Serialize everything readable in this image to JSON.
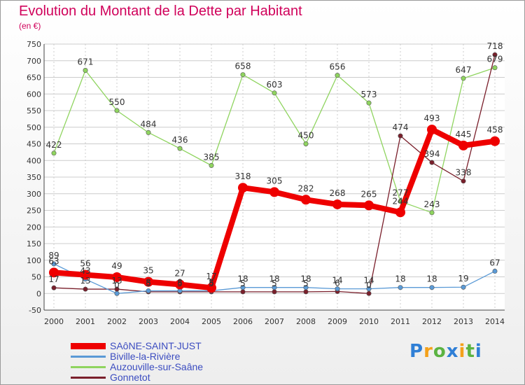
{
  "title": "Evolution du Montant de la Dette par Habitant",
  "unit_label": "(en €)",
  "logo_text": "Proxiti",
  "colors": {
    "title": "#d0005a",
    "axis": "#444444",
    "grid": "#cccccc",
    "legend_text": "#3b4cc0",
    "logo_letters": [
      "#2f7fd6",
      "#f4a11a",
      "#5bb342",
      "#2f7fd6",
      "#f4a11a",
      "#5bb342",
      "#2f7fd6"
    ]
  },
  "chart_data": {
    "type": "line",
    "title": "Evolution du Montant de la Dette par Habitant",
    "xlabel": "",
    "ylabel": "(en €)",
    "x": [
      2000,
      2001,
      2002,
      2003,
      2004,
      2005,
      2006,
      2007,
      2008,
      2009,
      2010,
      2011,
      2012,
      2013,
      2014
    ],
    "ylim": [
      -50,
      750
    ],
    "yticks": [
      -50,
      0,
      50,
      100,
      150,
      200,
      250,
      300,
      350,
      400,
      450,
      500,
      550,
      600,
      650,
      700,
      750
    ],
    "grid": true,
    "legend_position": "bottom-left",
    "series": [
      {
        "name": "SAôNE-SAINT-JUST",
        "color": "#ee0000",
        "values": [
          63,
          56,
          49,
          35,
          27,
          17,
          318,
          305,
          282,
          268,
          265,
          244,
          493,
          445,
          458
        ],
        "labels": [
          "63",
          "56",
          "49",
          "35",
          "27",
          "17",
          "318",
          "305",
          "282",
          "268",
          "265",
          "244",
          "493",
          "445",
          "458"
        ]
      },
      {
        "name": "Biville-la-Rivière",
        "color": "#5a9ad6",
        "values": [
          89,
          43,
          0,
          8,
          8,
          8,
          18,
          18,
          18,
          14,
          14,
          18,
          18,
          19,
          67
        ],
        "labels": [
          "89",
          "43",
          "0",
          "8",
          "8",
          "8",
          "18",
          "18",
          "18",
          "14",
          "14",
          "18",
          "18",
          "19",
          "67"
        ]
      },
      {
        "name": "Auzouville-sur-Saâne",
        "color": "#8fd45f",
        "values": [
          422,
          671,
          550,
          484,
          436,
          385,
          658,
          603,
          450,
          656,
          573,
          277,
          243,
          647,
          679
        ],
        "labels": [
          "422",
          "671",
          "550",
          "484",
          "436",
          "385",
          "658",
          "603",
          "450",
          "656",
          "573",
          "277",
          "243",
          "647",
          "679"
        ]
      },
      {
        "name": "Gonnetot",
        "color": "#7a1f2b",
        "values": [
          17,
          13,
          13,
          5,
          5,
          5,
          5,
          5,
          5,
          6,
          0,
          474,
          394,
          338,
          718
        ],
        "labels": [
          "17",
          "13",
          "13",
          "5",
          "5",
          "5",
          "5",
          "5",
          "5",
          "6",
          "0",
          "474",
          "394",
          "338",
          "718"
        ]
      }
    ]
  }
}
